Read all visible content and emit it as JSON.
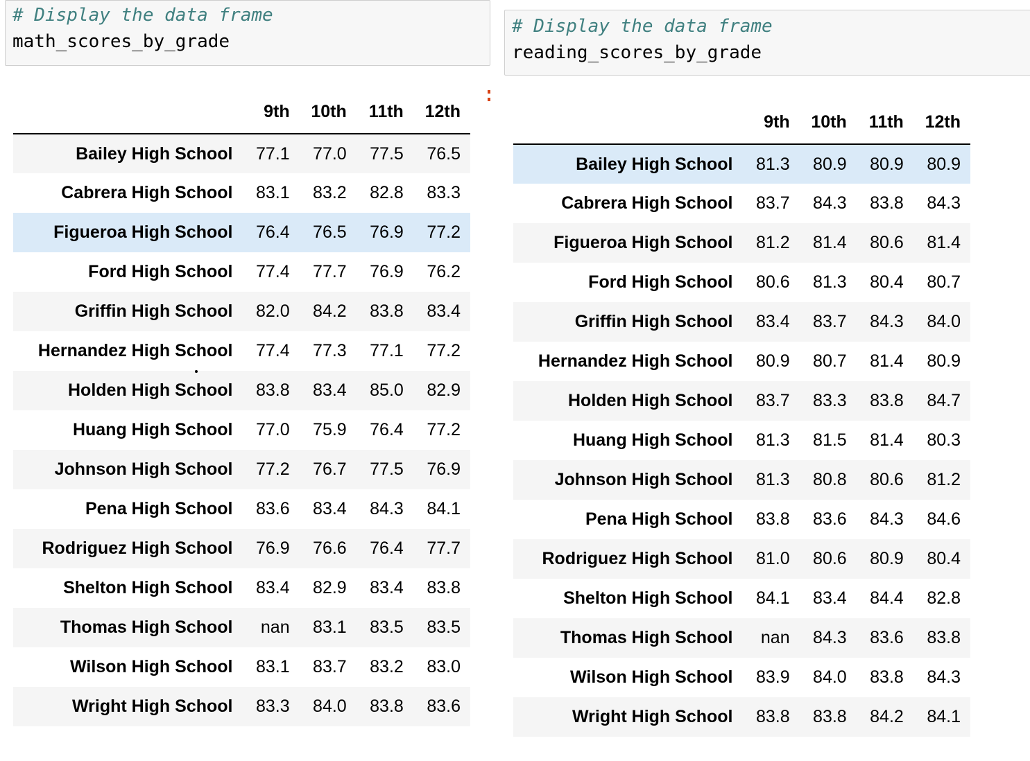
{
  "cells": [
    {
      "comment": "# Display the data frame",
      "code": "math_scores_by_grade"
    },
    {
      "comment": "# Display the data frame",
      "code": "reading_scores_by_grade"
    }
  ],
  "columns": [
    "9th",
    "10th",
    "11th",
    "12th"
  ],
  "math_rows": [
    {
      "school": "Bailey High School",
      "values": [
        "77.1",
        "77.0",
        "77.5",
        "76.5"
      ]
    },
    {
      "school": "Cabrera High School",
      "values": [
        "83.1",
        "83.2",
        "82.8",
        "83.3"
      ]
    },
    {
      "school": "Figueroa High School",
      "values": [
        "76.4",
        "76.5",
        "76.9",
        "77.2"
      ]
    },
    {
      "school": "Ford High School",
      "values": [
        "77.4",
        "77.7",
        "76.9",
        "76.2"
      ]
    },
    {
      "school": "Griffin High School",
      "values": [
        "82.0",
        "84.2",
        "83.8",
        "83.4"
      ]
    },
    {
      "school": "Hernandez High School",
      "values": [
        "77.4",
        "77.3",
        "77.1",
        "77.2"
      ]
    },
    {
      "school": "Holden High School",
      "values": [
        "83.8",
        "83.4",
        "85.0",
        "82.9"
      ]
    },
    {
      "school": "Huang High School",
      "values": [
        "77.0",
        "75.9",
        "76.4",
        "77.2"
      ]
    },
    {
      "school": "Johnson High School",
      "values": [
        "77.2",
        "76.7",
        "77.5",
        "76.9"
      ]
    },
    {
      "school": "Pena High School",
      "values": [
        "83.6",
        "83.4",
        "84.3",
        "84.1"
      ]
    },
    {
      "school": "Rodriguez High School",
      "values": [
        "76.9",
        "76.6",
        "76.4",
        "77.7"
      ]
    },
    {
      "school": "Shelton High School",
      "values": [
        "83.4",
        "82.9",
        "83.4",
        "83.8"
      ]
    },
    {
      "school": "Thomas High School",
      "values": [
        "nan",
        "83.1",
        "83.5",
        "83.5"
      ]
    },
    {
      "school": "Wilson High School",
      "values": [
        "83.1",
        "83.7",
        "83.2",
        "83.0"
      ]
    },
    {
      "school": "Wright High School",
      "values": [
        "83.3",
        "84.0",
        "83.8",
        "83.6"
      ]
    }
  ],
  "reading_rows": [
    {
      "school": "Bailey High School",
      "values": [
        "81.3",
        "80.9",
        "80.9",
        "80.9"
      ]
    },
    {
      "school": "Cabrera High School",
      "values": [
        "83.7",
        "84.3",
        "83.8",
        "84.3"
      ]
    },
    {
      "school": "Figueroa High School",
      "values": [
        "81.2",
        "81.4",
        "80.6",
        "81.4"
      ]
    },
    {
      "school": "Ford High School",
      "values": [
        "80.6",
        "81.3",
        "80.4",
        "80.7"
      ]
    },
    {
      "school": "Griffin High School",
      "values": [
        "83.4",
        "83.7",
        "84.3",
        "84.0"
      ]
    },
    {
      "school": "Hernandez High School",
      "values": [
        "80.9",
        "80.7",
        "81.4",
        "80.9"
      ]
    },
    {
      "school": "Holden High School",
      "values": [
        "83.7",
        "83.3",
        "83.8",
        "84.7"
      ]
    },
    {
      "school": "Huang High School",
      "values": [
        "81.3",
        "81.5",
        "81.4",
        "80.3"
      ]
    },
    {
      "school": "Johnson High School",
      "values": [
        "81.3",
        "80.8",
        "80.6",
        "81.2"
      ]
    },
    {
      "school": "Pena High School",
      "values": [
        "83.8",
        "83.6",
        "84.3",
        "84.6"
      ]
    },
    {
      "school": "Rodriguez High School",
      "values": [
        "81.0",
        "80.6",
        "80.9",
        "80.4"
      ]
    },
    {
      "school": "Shelton High School",
      "values": [
        "84.1",
        "83.4",
        "84.4",
        "82.8"
      ]
    },
    {
      "school": "Thomas High School",
      "values": [
        "nan",
        "84.3",
        "83.6",
        "83.8"
      ]
    },
    {
      "school": "Wilson High School",
      "values": [
        "83.9",
        "84.0",
        "83.8",
        "84.3"
      ]
    },
    {
      "school": "Wright High School",
      "values": [
        "83.8",
        "83.8",
        "84.2",
        "84.1"
      ]
    }
  ]
}
